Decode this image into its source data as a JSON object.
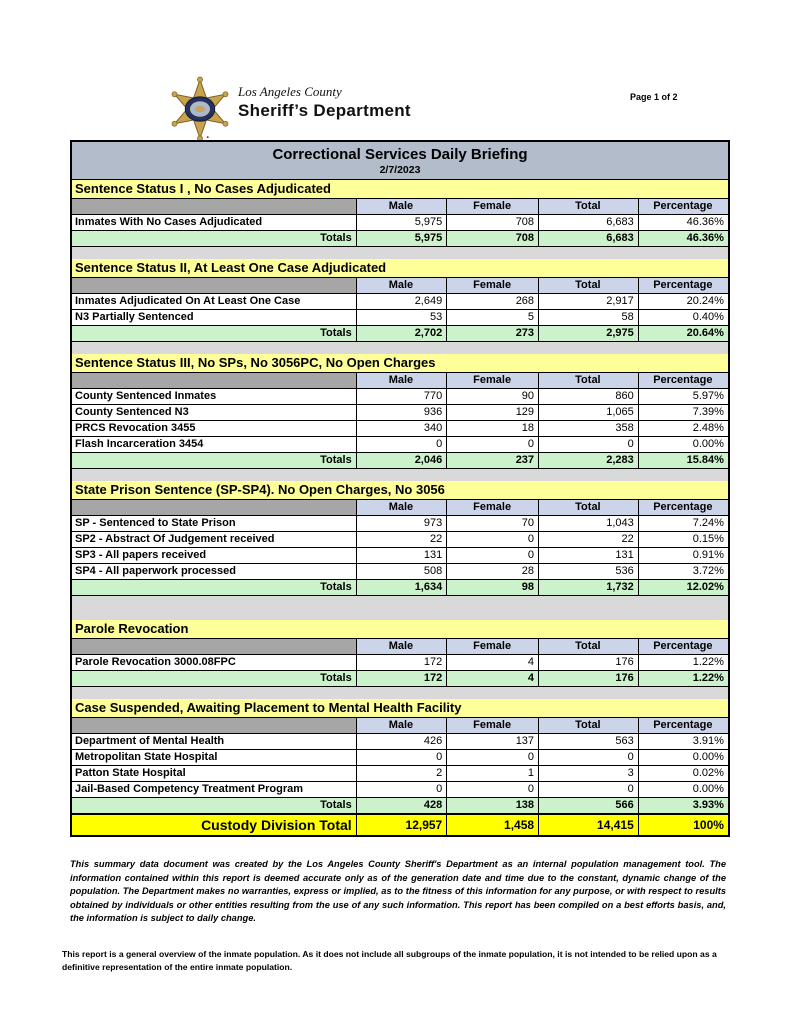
{
  "page": {
    "indicator": "Page 1 of 2"
  },
  "logo": {
    "county": "Los Angeles County",
    "department": "Sheriff’s Department",
    "icon": "sheriff-star-badge-icon"
  },
  "title": {
    "heading": "Correctional Services Daily Briefing",
    "date": "2/7/2023"
  },
  "columns": [
    "Male",
    "Female",
    "Total",
    "Percentage"
  ],
  "totals_label": "Totals",
  "sections": [
    {
      "title": "Sentence Status I , No Cases Adjudicated",
      "rows": [
        {
          "label": "Inmates With No Cases Adjudicated",
          "male": "5,975",
          "female": "708",
          "total": "6,683",
          "pct": "46.36%"
        }
      ],
      "totals": {
        "male": "5,975",
        "female": "708",
        "total": "6,683",
        "pct": "46.36%"
      }
    },
    {
      "title": "Sentence Status II, At Least One Case Adjudicated",
      "rows": [
        {
          "label": "Inmates Adjudicated On At Least One Case",
          "male": "2,649",
          "female": "268",
          "total": "2,917",
          "pct": "20.24%"
        },
        {
          "label": "N3 Partially Sentenced",
          "male": "53",
          "female": "5",
          "total": "58",
          "pct": "0.40%"
        }
      ],
      "totals": {
        "male": "2,702",
        "female": "273",
        "total": "2,975",
        "pct": "20.64%"
      }
    },
    {
      "title": "Sentence Status III, No SPs, No 3056PC, No Open Charges",
      "rows": [
        {
          "label": "County Sentenced Inmates",
          "male": "770",
          "female": "90",
          "total": "860",
          "pct": "5.97%"
        },
        {
          "label": "County Sentenced N3",
          "male": "936",
          "female": "129",
          "total": "1,065",
          "pct": "7.39%"
        },
        {
          "label": "PRCS Revocation 3455",
          "male": "340",
          "female": "18",
          "total": "358",
          "pct": "2.48%"
        },
        {
          "label": "Flash Incarceration 3454",
          "male": "0",
          "female": "0",
          "total": "0",
          "pct": "0.00%"
        }
      ],
      "totals": {
        "male": "2,046",
        "female": "237",
        "total": "2,283",
        "pct": "15.84%"
      }
    },
    {
      "title": "State Prison Sentence (SP-SP4). No Open Charges, No 3056",
      "rows": [
        {
          "label": "SP - Sentenced to State Prison",
          "male": "973",
          "female": "70",
          "total": "1,043",
          "pct": "7.24%"
        },
        {
          "label": "SP2 - Abstract Of Judgement received",
          "male": "22",
          "female": "0",
          "total": "22",
          "pct": "0.15%"
        },
        {
          "label": "SP3 - All papers received",
          "male": "131",
          "female": "0",
          "total": "131",
          "pct": "0.91%"
        },
        {
          "label": "SP4 - All paperwork processed",
          "male": "508",
          "female": "28",
          "total": "536",
          "pct": "3.72%"
        }
      ],
      "totals": {
        "male": "1,634",
        "female": "98",
        "total": "1,732",
        "pct": "12.02%"
      }
    },
    {
      "title": "Parole Revocation",
      "rows": [
        {
          "label": "Parole Revocation 3000.08FPC",
          "male": "172",
          "female": "4",
          "total": "176",
          "pct": "1.22%"
        }
      ],
      "totals": {
        "male": "172",
        "female": "4",
        "total": "176",
        "pct": "1.22%"
      }
    },
    {
      "title": "Case Suspended, Awaiting Placement to Mental Health Facility",
      "rows": [
        {
          "label": "Department of Mental Health",
          "male": "426",
          "female": "137",
          "total": "563",
          "pct": "3.91%"
        },
        {
          "label": "Metropolitan State Hospital",
          "male": "0",
          "female": "0",
          "total": "0",
          "pct": "0.00%"
        },
        {
          "label": "Patton State Hospital",
          "male": "2",
          "female": "1",
          "total": "3",
          "pct": "0.02%"
        },
        {
          "label": "Jail-Based Competency Treatment Program",
          "male": "0",
          "female": "0",
          "total": "0",
          "pct": "0.00%"
        }
      ],
      "totals": {
        "male": "428",
        "female": "138",
        "total": "566",
        "pct": "3.93%"
      }
    }
  ],
  "grand_total": {
    "label": "Custody Division Total",
    "male": "12,957",
    "female": "1,458",
    "total": "14,415",
    "pct": "100%"
  },
  "footnotes": {
    "disclaimer": "This summary data document was created by the Los Angeles County Sheriff's Department as an internal population management tool.  The information contained within this report is deemed accurate only as of the generation date and time due to the constant, dynamic change of the population.  The Department makes no warranties, express or implied, as to the fitness of this information for any purpose, or with respect to results obtained by individuals or other entities resulting from the use of any such information.  This report has been compiled on a best efforts basis, and, the information is subject to daily change.",
    "overview": "This report is a general overview of the inmate population.  As it does not include all subgroups of the inmate population, it is not intended to be relied upon as a definitive representation of the entire inmate population."
  },
  "colors": {
    "section_header": "#FFFF99",
    "column_header": "#CCD4EA",
    "totals_row": "#CCF2CC",
    "title_bar": "#B2BCCA",
    "grand_total_row": "#FFFF00",
    "gap_gray": "#D9D9D9",
    "header_spacer_gray": "#A6A6A6",
    "badge_gold": "#C8A24D",
    "badge_navy": "#233262"
  }
}
